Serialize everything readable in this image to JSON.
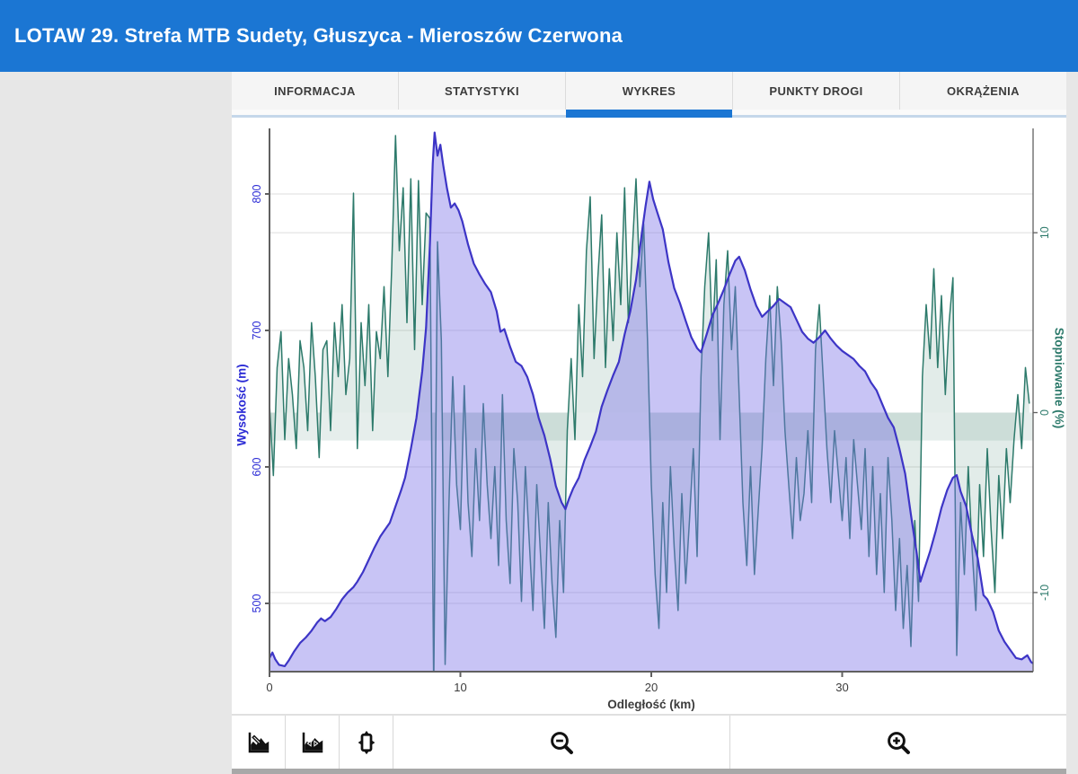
{
  "header": {
    "title": "LOTAW 29. Strefa MTB Sudety, Głuszyca - Mieroszów Czerwona",
    "background": "#1b76d3"
  },
  "tabs": {
    "active_index": 2,
    "items": [
      {
        "label": "INFORMACJA"
      },
      {
        "label": "STATYSTYKI"
      },
      {
        "label": "WYKRES"
      },
      {
        "label": "PUNKTY DROGI"
      },
      {
        "label": "OKRĄŻENIA"
      }
    ]
  },
  "toolbar": {
    "buttons": [
      {
        "icon": "elevation-mode-icon"
      },
      {
        "icon": "elevation-fit-icon"
      },
      {
        "icon": "orientation-icon"
      },
      {
        "icon": "zoom-out-icon"
      },
      {
        "icon": "zoom-in-icon"
      }
    ]
  },
  "colors": {
    "accent_blue": "#1b76d3",
    "elevation_line": "#3d35c6",
    "elevation_fill": "rgba(123,115,230,0.42)",
    "grade_line": "#2d7a6b",
    "grade_fill": "rgba(58,125,108,0.15)",
    "zero_band": "rgba(58,125,108,0.13)",
    "axis_line": "#606060",
    "grid_line": "#e9e9e9",
    "left_axis_text": "#2b2bd5",
    "right_axis_text": "#2d7a6b",
    "x_axis_text": "#3c3c3c"
  },
  "chart_data": {
    "type": "area",
    "title": "",
    "xlabel": "Odległość (km)",
    "x_range": [
      0,
      40
    ],
    "x_ticks": [
      0,
      10,
      20,
      30
    ],
    "grid": true,
    "left_axis": {
      "label": "Wysokość (m)",
      "ticks": [
        500,
        600,
        700,
        800
      ],
      "range": [
        450,
        848
      ]
    },
    "right_axis": {
      "label": "Stopniowanie (%)",
      "ticks": [
        -10,
        0,
        10
      ],
      "range": [
        -14.4,
        15.8
      ],
      "zero_band": [
        0,
        -1.55
      ]
    },
    "series": [
      {
        "name": "Wysokość (m)",
        "axis": "left",
        "points": [
          [
            0,
            460
          ],
          [
            0.15,
            464
          ],
          [
            0.3,
            459
          ],
          [
            0.5,
            455
          ],
          [
            0.8,
            454
          ],
          [
            1,
            458
          ],
          [
            1.3,
            465
          ],
          [
            1.6,
            471
          ],
          [
            1.9,
            475
          ],
          [
            2.2,
            480
          ],
          [
            2.5,
            486
          ],
          [
            2.7,
            489
          ],
          [
            2.9,
            487
          ],
          [
            3.2,
            490
          ],
          [
            3.5,
            496
          ],
          [
            3.8,
            503
          ],
          [
            4.1,
            508
          ],
          [
            4.4,
            512
          ],
          [
            4.6,
            516
          ],
          [
            4.9,
            523
          ],
          [
            5.2,
            532
          ],
          [
            5.5,
            541
          ],
          [
            5.8,
            549
          ],
          [
            6,
            553
          ],
          [
            6.3,
            559
          ],
          [
            6.6,
            571
          ],
          [
            6.9,
            583
          ],
          [
            7.1,
            592
          ],
          [
            7.4,
            613
          ],
          [
            7.7,
            636
          ],
          [
            8,
            670
          ],
          [
            8.2,
            702
          ],
          [
            8.4,
            762
          ],
          [
            8.55,
            822
          ],
          [
            8.65,
            845
          ],
          [
            8.8,
            828
          ],
          [
            8.95,
            836
          ],
          [
            9.1,
            821
          ],
          [
            9.3,
            804
          ],
          [
            9.5,
            790
          ],
          [
            9.7,
            793
          ],
          [
            9.9,
            788
          ],
          [
            10.1,
            780
          ],
          [
            10.4,
            763
          ],
          [
            10.7,
            749
          ],
          [
            11,
            741
          ],
          [
            11.3,
            734
          ],
          [
            11.6,
            728
          ],
          [
            11.9,
            714
          ],
          [
            12.1,
            699
          ],
          [
            12.3,
            701
          ],
          [
            12.6,
            688
          ],
          [
            12.9,
            677
          ],
          [
            13.2,
            674
          ],
          [
            13.5,
            666
          ],
          [
            13.8,
            653
          ],
          [
            14.1,
            636
          ],
          [
            14.4,
            623
          ],
          [
            14.7,
            606
          ],
          [
            15,
            586
          ],
          [
            15.3,
            574
          ],
          [
            15.5,
            569
          ],
          [
            15.7,
            577
          ],
          [
            15.9,
            584
          ],
          [
            16.2,
            592
          ],
          [
            16.5,
            605
          ],
          [
            16.8,
            615
          ],
          [
            17.1,
            626
          ],
          [
            17.4,
            644
          ],
          [
            17.7,
            656
          ],
          [
            18,
            667
          ],
          [
            18.3,
            677
          ],
          [
            18.6,
            697
          ],
          [
            18.9,
            714
          ],
          [
            19.2,
            737
          ],
          [
            19.5,
            771
          ],
          [
            19.7,
            791
          ],
          [
            19.9,
            809
          ],
          [
            20.1,
            796
          ],
          [
            20.3,
            787
          ],
          [
            20.6,
            774
          ],
          [
            20.9,
            750
          ],
          [
            21.2,
            731
          ],
          [
            21.5,
            720
          ],
          [
            21.8,
            707
          ],
          [
            22.1,
            695
          ],
          [
            22.4,
            687
          ],
          [
            22.6,
            684
          ],
          [
            22.9,
            697
          ],
          [
            23.2,
            711
          ],
          [
            23.5,
            720
          ],
          [
            23.8,
            730
          ],
          [
            24.1,
            741
          ],
          [
            24.4,
            751
          ],
          [
            24.6,
            754
          ],
          [
            24.9,
            744
          ],
          [
            25.2,
            730
          ],
          [
            25.5,
            718
          ],
          [
            25.8,
            710
          ],
          [
            26.1,
            714
          ],
          [
            26.4,
            718
          ],
          [
            26.7,
            723
          ],
          [
            27,
            720
          ],
          [
            27.3,
            717
          ],
          [
            27.6,
            708
          ],
          [
            27.9,
            699
          ],
          [
            28.2,
            694
          ],
          [
            28.5,
            691
          ],
          [
            28.8,
            695
          ],
          [
            29.1,
            700
          ],
          [
            29.4,
            694
          ],
          [
            29.7,
            689
          ],
          [
            30,
            685
          ],
          [
            30.3,
            682
          ],
          [
            30.6,
            679
          ],
          [
            30.9,
            674
          ],
          [
            31.2,
            670
          ],
          [
            31.5,
            662
          ],
          [
            31.8,
            656
          ],
          [
            32.1,
            646
          ],
          [
            32.4,
            636
          ],
          [
            32.7,
            629
          ],
          [
            33,
            613
          ],
          [
            33.3,
            595
          ],
          [
            33.6,
            565
          ],
          [
            33.9,
            537
          ],
          [
            34.1,
            516
          ],
          [
            34.3,
            525
          ],
          [
            34.6,
            538
          ],
          [
            34.9,
            553
          ],
          [
            35.2,
            570
          ],
          [
            35.5,
            583
          ],
          [
            35.8,
            592
          ],
          [
            36,
            594
          ],
          [
            36.2,
            582
          ],
          [
            36.5,
            571
          ],
          [
            36.8,
            550
          ],
          [
            37.1,
            533
          ],
          [
            37.4,
            506
          ],
          [
            37.6,
            503
          ],
          [
            37.9,
            494
          ],
          [
            38.2,
            480
          ],
          [
            38.5,
            472
          ],
          [
            38.8,
            466
          ],
          [
            39.1,
            460
          ],
          [
            39.4,
            459
          ],
          [
            39.7,
            462
          ],
          [
            39.9,
            457
          ],
          [
            40,
            456
          ]
        ]
      },
      {
        "name": "Stopniowanie (%)",
        "axis": "right",
        "x_step": 0.2,
        "values": [
          0.5,
          -3.5,
          2.5,
          4.5,
          -1.5,
          3,
          1,
          -2,
          4,
          2.5,
          -1,
          5,
          2,
          -2.5,
          3.5,
          4,
          -1,
          5,
          2,
          6,
          1,
          3,
          12.2,
          -2,
          5,
          1.5,
          6,
          -1,
          4.5,
          3,
          7,
          2,
          8,
          15.4,
          9,
          12.5,
          5,
          13,
          3.5,
          12.9,
          6,
          11.1,
          10.8,
          -15.5,
          9.5,
          4,
          -14,
          -5,
          2,
          -4,
          -6.5,
          1.5,
          -5,
          -8,
          -2,
          -6,
          0.5,
          -4,
          -7,
          -3,
          -8.5,
          1,
          -6,
          -9.5,
          -2,
          -5,
          -10.5,
          -3,
          -7,
          -11,
          -4,
          -8,
          -12,
          -5,
          -9.5,
          -12.5,
          -6,
          -10,
          -1,
          3,
          -1.5,
          6,
          2,
          9,
          12,
          3,
          7.5,
          11,
          2.5,
          8,
          4,
          10,
          6,
          12.5,
          5,
          9,
          13,
          7,
          10.5,
          4,
          -4,
          -9,
          -12,
          -5,
          -10,
          -3,
          -7.5,
          -11,
          -4.5,
          -9.5,
          -6,
          -2,
          -8,
          2,
          7,
          10,
          4,
          8.5,
          -1.5,
          6,
          9,
          3.5,
          7,
          1,
          -5,
          -8.5,
          -3,
          -9,
          -5.5,
          -2,
          3,
          6.5,
          1.5,
          7,
          4,
          -1,
          -4,
          -7,
          -2.5,
          -6,
          -4.5,
          -1,
          -5,
          3.5,
          6,
          2,
          -2,
          -5,
          -1,
          -3.5,
          -6,
          -2.5,
          -7,
          -1.5,
          -4,
          -6.5,
          -2,
          -8,
          -3,
          -9,
          -4.5,
          -10,
          -2.5,
          -6,
          -11,
          -7,
          -12,
          -8.5,
          -13,
          -6,
          -10.5,
          2,
          6,
          3,
          8,
          2.5,
          6.5,
          1,
          5,
          7.5,
          -13.5,
          -5,
          -9,
          -3,
          -7.5,
          -11,
          -4,
          -8,
          -2,
          -6.5,
          -10,
          -3.5,
          -7,
          -2,
          -5,
          -1.5,
          1,
          -2,
          2.5,
          0.5
        ]
      }
    ]
  }
}
